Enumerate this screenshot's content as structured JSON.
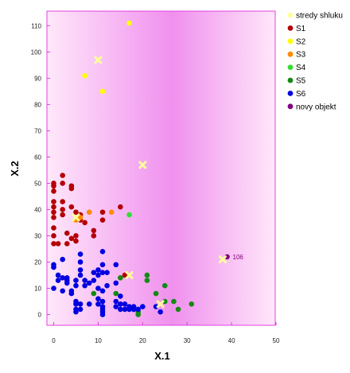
{
  "chart_data": {
    "type": "scatter",
    "xlabel": "X.1",
    "ylabel": "X.2",
    "xlim": [
      0,
      50
    ],
    "ylim": [
      -5,
      115
    ],
    "x_ticks": [
      0,
      10,
      20,
      30,
      40,
      50
    ],
    "y_ticks": [
      0,
      10,
      20,
      30,
      40,
      50,
      60,
      70,
      80,
      90,
      100,
      110
    ],
    "grid": false,
    "legend_position": "right",
    "background": "gradient pink-magenta",
    "series": [
      {
        "name": "stredy shluku",
        "color": "#FFFF99",
        "marker": "x",
        "points": [
          [
            10,
            97
          ],
          [
            20,
            57
          ],
          [
            38,
            21
          ],
          [
            5,
            37
          ],
          [
            17,
            15
          ],
          [
            24,
            4
          ]
        ]
      },
      {
        "name": "S1",
        "color": "#B40000",
        "marker": "circle",
        "points": [
          [
            0,
            50
          ],
          [
            0,
            49
          ],
          [
            0,
            47
          ],
          [
            0,
            43
          ],
          [
            0,
            41
          ],
          [
            0,
            39
          ],
          [
            0,
            37
          ],
          [
            0,
            33
          ],
          [
            0,
            30
          ],
          [
            0,
            27
          ],
          [
            1,
            27
          ],
          [
            2,
            53
          ],
          [
            2,
            50
          ],
          [
            2,
            43
          ],
          [
            2,
            40
          ],
          [
            2,
            38
          ],
          [
            3,
            31
          ],
          [
            3,
            27
          ],
          [
            4,
            49
          ],
          [
            4,
            48
          ],
          [
            4,
            41
          ],
          [
            4,
            29
          ],
          [
            5,
            39
          ],
          [
            5,
            30
          ],
          [
            5,
            28
          ],
          [
            6,
            38
          ],
          [
            6,
            36
          ],
          [
            7,
            35
          ],
          [
            9,
            32
          ],
          [
            9,
            30
          ],
          [
            11,
            39
          ],
          [
            11,
            36
          ],
          [
            15,
            41
          ],
          [
            16,
            15
          ]
        ]
      },
      {
        "name": "S2",
        "color": "#FFFF00",
        "marker": "circle",
        "points": [
          [
            17,
            111
          ],
          [
            7,
            91
          ],
          [
            11,
            85
          ]
        ]
      },
      {
        "name": "S3",
        "color": "#FF8C00",
        "marker": "circle",
        "points": [
          [
            5,
            36
          ],
          [
            6,
            37
          ],
          [
            8,
            39
          ],
          [
            13,
            39
          ],
          [
            15,
            14
          ]
        ]
      },
      {
        "name": "S4",
        "color": "#33DD33",
        "marker": "circle",
        "points": [
          [
            17,
            38
          ]
        ]
      },
      {
        "name": "S5",
        "color": "#138A13",
        "marker": "circle",
        "points": [
          [
            9,
            8
          ],
          [
            14,
            8
          ],
          [
            15,
            14
          ],
          [
            18,
            2
          ],
          [
            19,
            1
          ],
          [
            19,
            0
          ],
          [
            21,
            15
          ],
          [
            21,
            13
          ],
          [
            23,
            8
          ],
          [
            25,
            11
          ],
          [
            25,
            5
          ],
          [
            27,
            5
          ],
          [
            28,
            2
          ],
          [
            31,
            4
          ]
        ]
      },
      {
        "name": "S6",
        "color": "#0000E0",
        "marker": "circle",
        "points": [
          [
            0,
            19
          ],
          [
            0,
            18
          ],
          [
            0,
            10
          ],
          [
            1,
            15
          ],
          [
            1,
            13
          ],
          [
            2,
            21
          ],
          [
            2,
            14
          ],
          [
            2,
            9
          ],
          [
            3,
            14
          ],
          [
            3,
            13
          ],
          [
            3,
            12
          ],
          [
            4,
            9
          ],
          [
            4,
            8
          ],
          [
            5,
            13
          ],
          [
            5,
            11
          ],
          [
            5,
            5
          ],
          [
            5,
            4
          ],
          [
            5,
            2
          ],
          [
            5,
            1
          ],
          [
            6,
            23
          ],
          [
            6,
            20
          ],
          [
            6,
            17
          ],
          [
            6,
            15
          ],
          [
            6,
            4
          ],
          [
            6,
            2
          ],
          [
            7,
            13
          ],
          [
            7,
            11
          ],
          [
            8,
            12
          ],
          [
            8,
            4
          ],
          [
            9,
            16
          ],
          [
            9,
            13
          ],
          [
            10,
            17
          ],
          [
            10,
            15
          ],
          [
            10,
            10
          ],
          [
            10,
            6
          ],
          [
            10,
            4
          ],
          [
            11,
            24
          ],
          [
            11,
            19
          ],
          [
            11,
            16
          ],
          [
            11,
            9
          ],
          [
            11,
            5
          ],
          [
            11,
            3
          ],
          [
            11,
            2
          ],
          [
            11,
            1
          ],
          [
            11,
            0
          ],
          [
            12,
            16
          ],
          [
            12,
            11
          ],
          [
            14,
            19
          ],
          [
            14,
            12
          ],
          [
            14,
            5
          ],
          [
            14,
            3
          ],
          [
            15,
            7
          ],
          [
            15,
            4
          ],
          [
            15,
            2
          ],
          [
            16,
            4
          ],
          [
            16,
            2
          ],
          [
            17,
            3
          ],
          [
            17,
            2
          ],
          [
            18,
            3
          ],
          [
            18,
            2
          ],
          [
            19,
            2
          ],
          [
            20,
            3
          ],
          [
            23,
            3
          ],
          [
            24,
            1
          ]
        ]
      },
      {
        "name": "novy objekt",
        "color": "#800080",
        "marker": "circle",
        "points": [
          [
            39,
            22
          ]
        ]
      }
    ],
    "annotations": [
      {
        "text": "106",
        "x": 39,
        "y": 22
      }
    ]
  }
}
